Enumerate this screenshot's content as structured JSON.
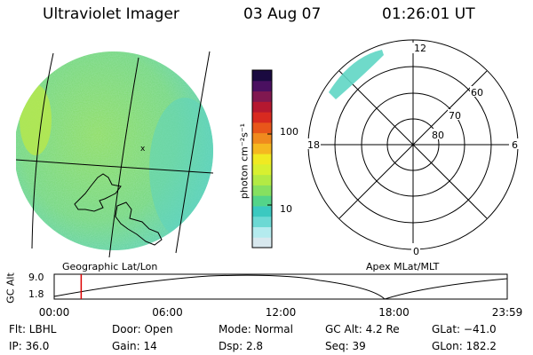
{
  "header": {
    "instrument": "Ultraviolet Imager",
    "date": "03 Aug 07",
    "time": "01:26:01 UT"
  },
  "colorbar": {
    "label": "photon cm⁻²s⁻¹",
    "ticks": [
      {
        "label": "100",
        "value": 100
      },
      {
        "label": "10",
        "value": 10
      }
    ],
    "colors": [
      "#d8e8ee",
      "#b4ebee",
      "#6cd9d4",
      "#3bc9c0",
      "#54d489",
      "#86e060",
      "#b3ea44",
      "#d8f030",
      "#f0ea22",
      "#f5b820",
      "#f08a1e",
      "#e8561a",
      "#d82a20",
      "#b51830",
      "#801850",
      "#4a1060",
      "#1a0a40"
    ]
  },
  "geographic_panel": {
    "label": "Geographic Lat/Lon",
    "emission_color": "#7ed86a"
  },
  "polar_panel": {
    "label": "Apex MLat/MLT",
    "mlt_labels": {
      "top": "12",
      "bottom": "0",
      "left": "18",
      "right": "6"
    },
    "mlat_labels": [
      "60",
      "70",
      "80"
    ]
  },
  "altitude_plot": {
    "ylabel": "GC Alt",
    "ytick_top": "9.0",
    "ytick_bottom": "1.8",
    "xticks": [
      "00:00",
      "06:00",
      "12:00",
      "18:00",
      "23:59"
    ],
    "current_time_marker_hours": 1.43,
    "marker_color": "#dd0000"
  },
  "info": {
    "filter": "Flt: LBHL",
    "ip": "IP: 36.0",
    "door": "Door: Open",
    "gain": "Gain: 14",
    "mode": "Mode: Normal",
    "dsp": "Dsp:    2.8",
    "gc_alt": "GC Alt: 4.2 Re",
    "seq": "Seq: 39",
    "glat": "GLat: −41.0",
    "glon": "GLon: 182.2"
  }
}
